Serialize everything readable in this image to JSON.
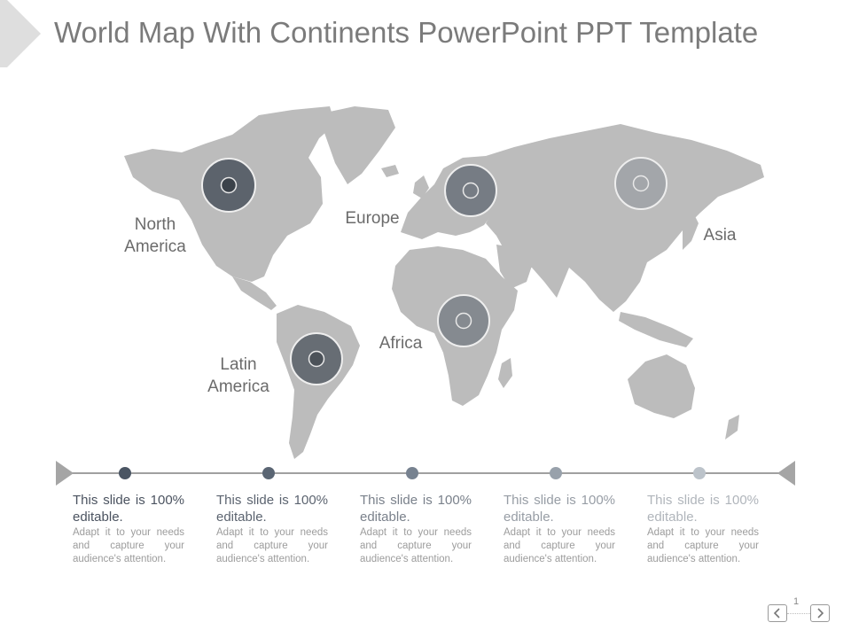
{
  "title": "World Map With Continents PowerPoint PPT Template",
  "colors": {
    "land": "#bcbcbc",
    "title": "#7b7b7b",
    "label": "#6b6b6b",
    "timeline_line": "#a0a0a0"
  },
  "regions": [
    {
      "name": "North America",
      "marker_color": "#5c636c"
    },
    {
      "name": "Latin America",
      "marker_color": "#676d74"
    },
    {
      "name": "Europe",
      "marker_color": "#767c84"
    },
    {
      "name": "Africa",
      "marker_color": "#858a90"
    },
    {
      "name": "Asia",
      "marker_color": "#a3a6aa"
    }
  ],
  "timeline": {
    "dot_colors": [
      "#4a5563",
      "#5a6573",
      "#778290",
      "#98a1ab",
      "#bcc3ca"
    ],
    "cards": [
      {
        "heading": "This slide is 100% editable.",
        "body": "Adapt it to your needs and capture your audience's attention.",
        "color": "#4b5360"
      },
      {
        "heading": "This slide is 100% editable.",
        "body": "Adapt it to your needs and capture your audience's attention.",
        "color": "#5c6470"
      },
      {
        "heading": "This slide is 100% editable.",
        "body": "Adapt it to your needs and capture your audience's attention.",
        "color": "#7a818b"
      },
      {
        "heading": "This slide is 100% editable.",
        "body": "Adapt it to your needs and capture your audience's attention.",
        "color": "#979da5"
      },
      {
        "heading": "This slide is 100% editable.",
        "body": "Adapt it to your needs and capture your audience's attention.",
        "color": "#b0b5bb"
      }
    ]
  },
  "page_number": "1"
}
